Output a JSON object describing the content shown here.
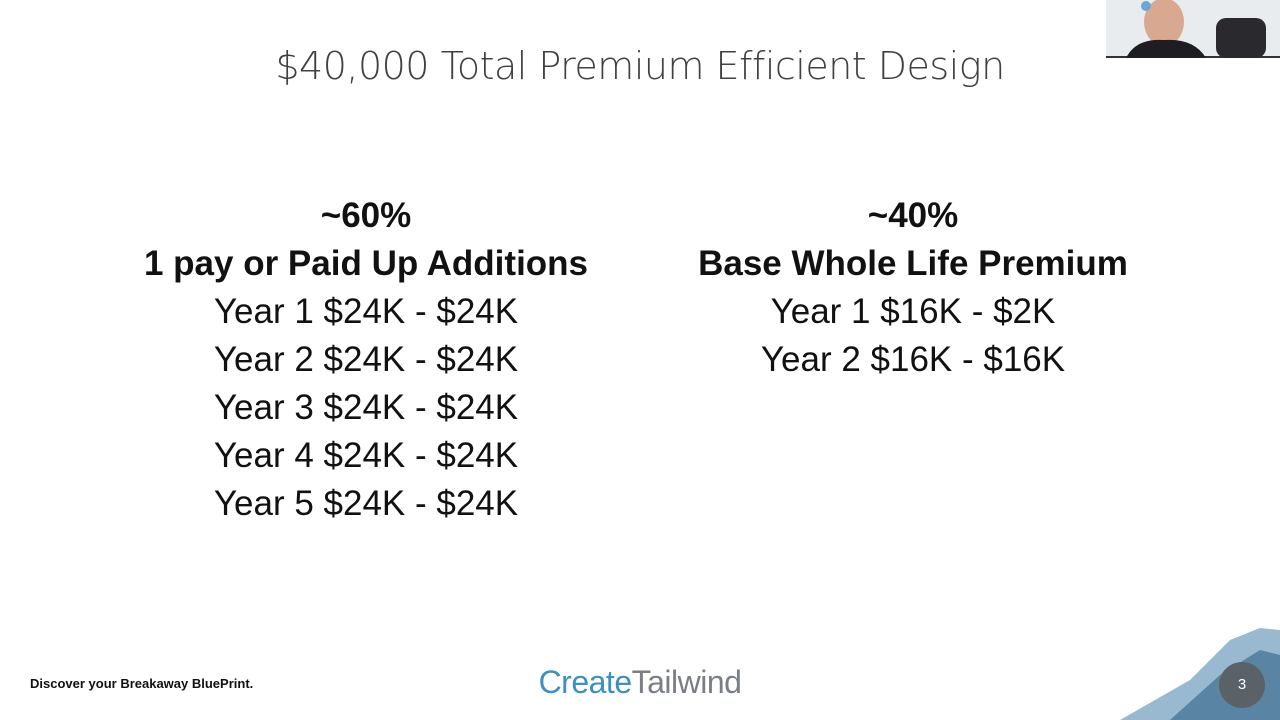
{
  "slide": {
    "title": "$40,000 Total Premium Efficient Design",
    "columns": [
      {
        "percent": "~60%",
        "heading": "1 pay or Paid Up Additions",
        "lines": [
          "Year 1 $24K - $24K",
          "Year 2 $24K - $24K",
          "Year 3 $24K - $24K",
          "Year 4 $24K - $24K",
          "Year 5 $24K - $24K"
        ]
      },
      {
        "percent": "~40%",
        "heading": "Base Whole Life Premium",
        "lines": [
          "Year 1 $16K - $2K",
          "Year 2 $16K - $16K"
        ]
      }
    ],
    "footer": {
      "tagline": "Discover your Breakaway BluePrint.",
      "logo_create": "Create",
      "logo_tailwind": "Tailwind",
      "page_number": "3"
    }
  }
}
